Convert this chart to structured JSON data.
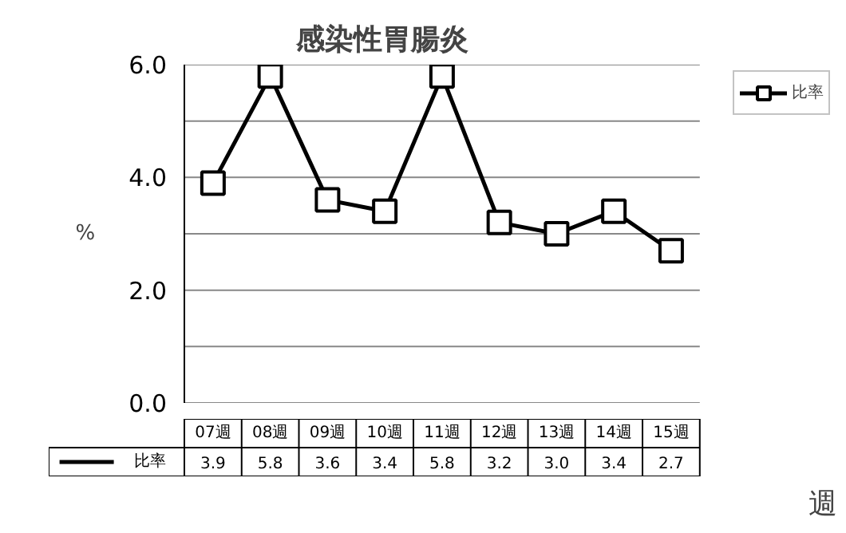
{
  "chart_data": {
    "type": "line",
    "title": "感染性胃腸炎",
    "xlabel": "週",
    "ylabel": "%",
    "categories": [
      "07週",
      "08週",
      "09週",
      "10週",
      "11週",
      "12週",
      "13週",
      "14週",
      "15週"
    ],
    "series": [
      {
        "name": "比率",
        "color": "#000000",
        "values": [
          3.9,
          5.8,
          3.6,
          3.4,
          5.8,
          3.2,
          3.0,
          3.4,
          2.7
        ],
        "value_labels": [
          "3.9",
          "5.8",
          "3.6",
          "3.4",
          "5.8",
          "3.2",
          "3.0",
          "3.4",
          "2.7"
        ]
      }
    ],
    "ylim": [
      0,
      6
    ],
    "yticks": [
      "0.0",
      {
        "value": 1,
        "label": null
      },
      "2.0",
      {
        "value": 3,
        "label": null
      },
      "4.0",
      {
        "value": 5,
        "label": null
      },
      "6.0"
    ],
    "grid": "y",
    "legend": "top right",
    "marker": "square",
    "line_style": "solid"
  }
}
